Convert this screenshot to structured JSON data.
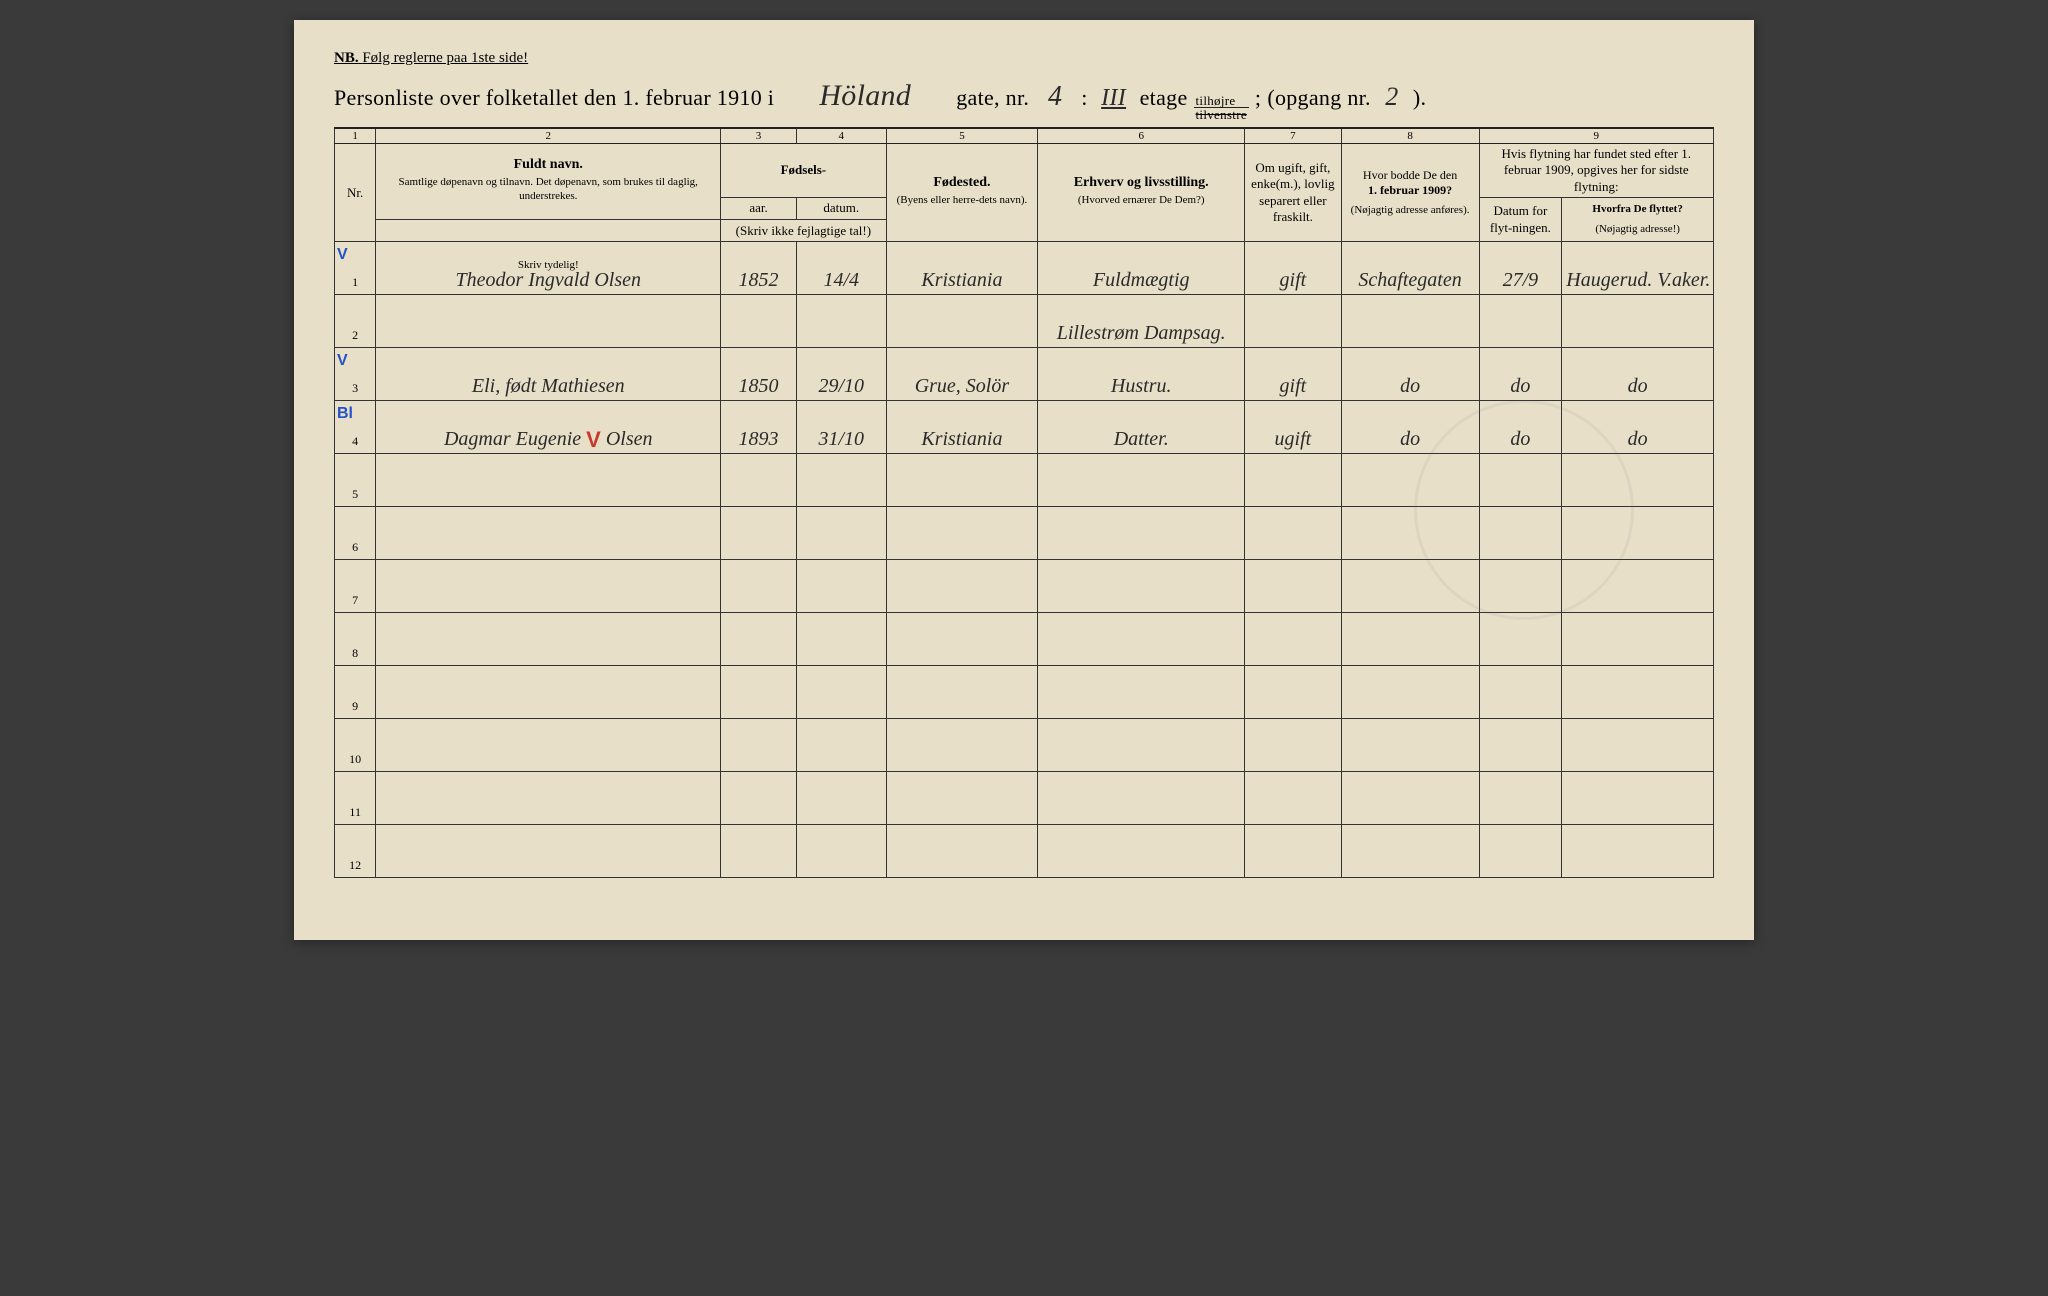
{
  "nb": {
    "label": "NB.",
    "text": "Følg reglerne paa 1ste side!"
  },
  "title": {
    "prefix": "Personliste over folketallet den 1. februar 1910 i",
    "street": "Höland",
    "gate_label": "gate, nr.",
    "gate_nr": "4",
    "colon": ":",
    "etage_val": "III",
    "etage_label": "etage",
    "side_top": "tilhøjre",
    "side_bot": "tilvenstre",
    "opgang_label": "(opgang nr.",
    "opgang_nr": "2",
    "opgang_close": ")."
  },
  "cols": {
    "c1": "1",
    "c2": "2",
    "c3": "3",
    "c4": "4",
    "c5": "5",
    "c6": "6",
    "c7": "7",
    "c8": "8",
    "c9": "9"
  },
  "headers": {
    "nr": "Nr.",
    "fuldt_navn": "Fuldt navn.",
    "fuldt_sub": "Samtlige døpenavn og tilnavn. Det døpenavn, som brukes til daglig, understrekes.",
    "fodsels": "Fødsels-",
    "aar": "aar.",
    "datum": "datum.",
    "aar_sub": "(Skriv ikke fejlagtige tal!)",
    "fodested": "Fødested.",
    "fodested_sub": "(Byens eller herre-dets navn).",
    "erhverv": "Erhverv og livsstilling.",
    "erhverv_sub": "(Hvorved ernærer De Dem?)",
    "omugift": "Om ugift, gift, enke(m.), lovlig separert eller fraskilt.",
    "hvorbodde": "Hvor bodde De den 1. februar 1909?",
    "hvorbodde_sub": "(Nøjagtig adresse anføres).",
    "flytning_top": "Hvis flytning har fundet sted efter 1. februar 1909, opgives her for sidste flytning:",
    "datum_flyt": "Datum for flyt-ningen.",
    "hvorfra": "Hvorfra De flyttet?",
    "hvorfra_sub": "(Nøjagtig adresse!)",
    "skriv_tydelig": "Skriv tydelig!"
  },
  "rows": [
    {
      "nr": "1",
      "mark": "V",
      "mark_color": "blue",
      "navn": "Theodor Ingvald Olsen",
      "aar": "1852",
      "datum": "14/4",
      "fodested": "Kristiania",
      "erhverv": "Fuldmægtig",
      "status": "gift",
      "bodde": "Schaftegaten",
      "flyt_datum": "27/9",
      "hvorfra": "Haugerud. V.aker."
    },
    {
      "nr": "2",
      "mark": "",
      "mark_color": "",
      "navn": "",
      "aar": "",
      "datum": "",
      "fodested": "",
      "erhverv": "Lillestrøm Dampsag.",
      "status": "",
      "bodde": "",
      "flyt_datum": "",
      "hvorfra": ""
    },
    {
      "nr": "3",
      "mark": "V",
      "mark_color": "blue",
      "navn": "Eli, født Mathiesen",
      "aar": "1850",
      "datum": "29/10",
      "fodested": "Grue, Solör",
      "erhverv": "Hustru.",
      "status": "gift",
      "bodde": "do",
      "flyt_datum": "do",
      "hvorfra": "do"
    },
    {
      "nr": "4",
      "mark": "Bl",
      "mark_color": "blue",
      "navn": "Dagmar Eugenie Olsen",
      "navn_red": "V",
      "aar": "1893",
      "datum": "31/10",
      "fodested": "Kristiania",
      "erhverv": "Datter.",
      "status": "ugift",
      "bodde": "do",
      "flyt_datum": "do",
      "hvorfra": "do"
    },
    {
      "nr": "5"
    },
    {
      "nr": "6"
    },
    {
      "nr": "7"
    },
    {
      "nr": "8"
    },
    {
      "nr": "9"
    },
    {
      "nr": "10"
    },
    {
      "nr": "11"
    },
    {
      "nr": "12"
    }
  ],
  "colors": {
    "paper": "#e8dfc8",
    "ink": "#222222",
    "handwriting": "#2a2a2a",
    "blue_pencil": "#2452c8",
    "red_pencil": "#c83a2a"
  },
  "col_widths_pct": [
    3,
    25,
    5.5,
    6.5,
    11,
    15,
    7,
    10,
    6,
    11
  ]
}
